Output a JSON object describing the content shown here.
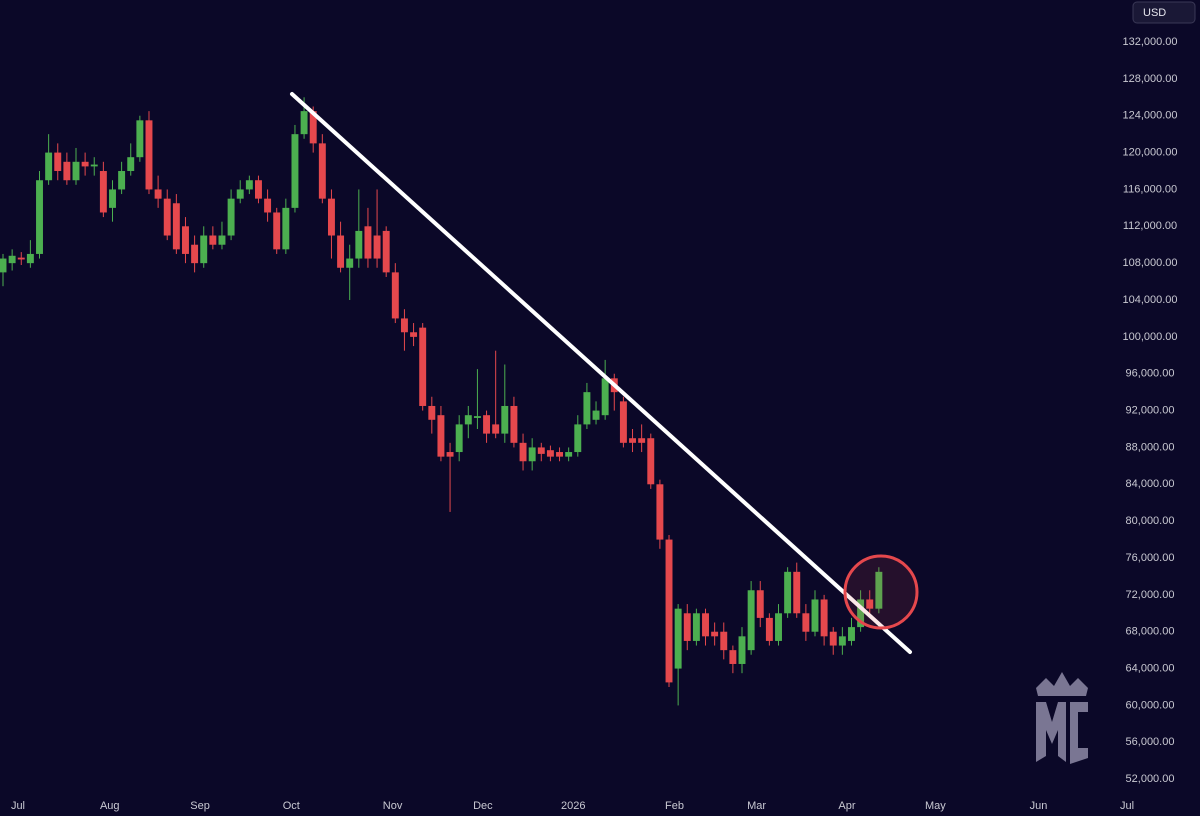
{
  "chart_data": {
    "type": "candlestick",
    "currency": "USD",
    "up_color": "#4caf50",
    "down_color": "#e5484d",
    "categories": [
      null,
      null,
      null,
      null,
      null,
      null,
      null,
      null,
      null,
      null,
      null,
      null,
      null,
      null,
      null,
      null,
      null,
      null,
      null,
      null,
      null,
      null,
      null,
      null,
      null,
      null,
      null,
      null,
      null,
      null,
      null,
      null,
      null,
      null,
      null,
      null,
      null,
      null,
      null,
      null,
      null,
      null,
      null,
      null,
      null,
      null,
      null,
      null,
      null,
      null,
      null,
      null,
      null,
      null,
      null,
      null,
      null,
      null,
      null,
      null,
      null,
      null,
      null,
      null,
      null,
      null,
      null,
      null,
      null,
      null,
      null,
      null,
      null,
      null,
      null,
      null,
      null,
      null,
      null,
      null,
      null,
      null,
      null,
      null,
      null,
      null,
      null,
      null,
      null,
      null,
      null,
      null,
      null,
      null,
      null,
      null,
      null
    ],
    "open": [
      107000,
      108000,
      108600,
      108000,
      109000,
      117000,
      120000,
      119000,
      117000,
      119000,
      118500,
      118000,
      114000,
      116000,
      118000,
      119500,
      123500,
      116000,
      115000,
      114500,
      112000,
      110000,
      108000,
      111000,
      110000,
      111000,
      115000,
      116000,
      117000,
      115000,
      113500,
      109500,
      114000,
      122000,
      124500,
      121000,
      115000,
      111000,
      107500,
      108500,
      112000,
      111000,
      111500,
      107000,
      102000,
      100500,
      101000,
      92500,
      91500,
      87500,
      87500,
      90500,
      91200,
      91500,
      90500,
      89500,
      92500,
      88500,
      86500,
      88000,
      87700,
      87500,
      87000,
      87500,
      90500,
      91000,
      91500,
      95500,
      93000,
      89000,
      89000,
      89000,
      84000,
      78000,
      64000,
      70000,
      67000,
      70000,
      68000,
      68000,
      66000,
      64500,
      66000,
      72500,
      69500,
      67000,
      70000,
      74500,
      70000,
      68000,
      71500,
      68000,
      66500,
      67000,
      68500,
      71500,
      70500
    ],
    "high": [
      109000,
      109500,
      109200,
      110500,
      118000,
      122000,
      121000,
      120000,
      120500,
      120000,
      119500,
      119000,
      117000,
      119000,
      121000,
      124000,
      124500,
      117500,
      116000,
      115500,
      113000,
      111000,
      112000,
      112000,
      112500,
      116000,
      117000,
      117500,
      117500,
      116000,
      114000,
      115000,
      123000,
      126000,
      125000,
      122000,
      116000,
      112500,
      110000,
      116000,
      114000,
      116000,
      112000,
      108000,
      103000,
      101500,
      101500,
      93500,
      92500,
      88500,
      91500,
      92500,
      96500,
      92000,
      98500,
      97000,
      93500,
      89500,
      89000,
      88500,
      88200,
      88000,
      88000,
      91500,
      95000,
      93000,
      97500,
      96000,
      93500,
      90000,
      90500,
      89500,
      84500,
      78500,
      71000,
      71000,
      70500,
      70500,
      69000,
      69000,
      66500,
      68500,
      73500,
      73500,
      70000,
      71000,
      75000,
      75500,
      71000,
      72500,
      72000,
      68500,
      68500,
      69500,
      72500,
      72500,
      75000
    ],
    "low": [
      105500,
      107200,
      107800,
      107500,
      108500,
      116500,
      117000,
      116500,
      116500,
      117500,
      117500,
      113000,
      112500,
      115500,
      117500,
      119000,
      115500,
      114000,
      110500,
      109000,
      108000,
      107000,
      107500,
      109500,
      109500,
      110500,
      114500,
      115500,
      114500,
      112500,
      109000,
      109000,
      113500,
      121500,
      120000,
      114500,
      108500,
      107000,
      104000,
      107500,
      107500,
      107500,
      106500,
      101500,
      98500,
      99000,
      92000,
      89500,
      86500,
      81000,
      86500,
      89000,
      90000,
      88500,
      89000,
      88500,
      88000,
      85500,
      85500,
      86500,
      86500,
      86500,
      86500,
      87000,
      90000,
      90500,
      91000,
      92000,
      88000,
      87500,
      87500,
      83500,
      77000,
      62000,
      60000,
      66000,
      66500,
      66500,
      66500,
      65000,
      63500,
      63500,
      65500,
      68500,
      66500,
      66500,
      69500,
      69500,
      67000,
      67500,
      66500,
      65500,
      65500,
      66500,
      68000,
      70000,
      70000
    ],
    "close": [
      108500,
      108800,
      108400,
      109000,
      117000,
      120000,
      118000,
      117000,
      119000,
      118500,
      118700,
      113500,
      116000,
      118000,
      119500,
      123500,
      116000,
      115000,
      111000,
      109500,
      109000,
      108000,
      111000,
      110000,
      111000,
      115000,
      116000,
      117000,
      115000,
      113500,
      109500,
      114000,
      122000,
      124500,
      121000,
      115000,
      111000,
      107500,
      108500,
      111500,
      108500,
      108500,
      107000,
      102000,
      100500,
      100000,
      92500,
      91000,
      87000,
      87000,
      90500,
      91500,
      91400,
      89500,
      89500,
      92500,
      88500,
      86500,
      88000,
      87300,
      87000,
      87000,
      87500,
      90500,
      94000,
      92000,
      95500,
      94000,
      88500,
      88500,
      88500,
      84000,
      78000,
      62500,
      70500,
      67000,
      70000,
      67500,
      67500,
      66000,
      64500,
      67500,
      72500,
      69500,
      67000,
      70000,
      74500,
      70000,
      68000,
      71500,
      67500,
      66500,
      67500,
      68500,
      71500,
      70500,
      74500
    ],
    "xlim": [
      -0.33,
      131.2
    ],
    "xticks": [
      {
        "value": 1.64,
        "label": "Jul"
      },
      {
        "value": 11.7,
        "label": "Aug"
      },
      {
        "value": 21.6,
        "label": "Sep"
      },
      {
        "value": 31.6,
        "label": "Oct"
      },
      {
        "value": 42.7,
        "label": "Nov"
      },
      {
        "value": 52.6,
        "label": "Dec"
      },
      {
        "value": 62.5,
        "label": "2026"
      },
      {
        "value": 73.6,
        "label": "Feb"
      },
      {
        "value": 82.6,
        "label": "Mar"
      },
      {
        "value": 92.5,
        "label": "Apr"
      },
      {
        "value": 102.2,
        "label": "May"
      },
      {
        "value": 113.5,
        "label": "Jun"
      },
      {
        "value": 123.2,
        "label": "Jul"
      }
    ],
    "ylim": [
      48000,
      136560
    ],
    "yticks": [
      {
        "value": 52000,
        "label": "52,000.00"
      },
      {
        "value": 56000,
        "label": "56,000.00"
      },
      {
        "value": 60000,
        "label": "60,000.00"
      },
      {
        "value": 64000,
        "label": "64,000.00"
      },
      {
        "value": 68000,
        "label": "68,000.00"
      },
      {
        "value": 72000,
        "label": "72,000.00"
      },
      {
        "value": 76000,
        "label": "76,000.00"
      },
      {
        "value": 80000,
        "label": "80,000.00"
      },
      {
        "value": 84000,
        "label": "84,000.00"
      },
      {
        "value": 88000,
        "label": "88,000.00"
      },
      {
        "value": 92000,
        "label": "92,000.00"
      },
      {
        "value": 96000,
        "label": "96,000.00"
      },
      {
        "value": 100000,
        "label": "100,000.00"
      },
      {
        "value": 104000,
        "label": "104,000.00"
      },
      {
        "value": 108000,
        "label": "108,000.00"
      },
      {
        "value": 112000,
        "label": "112,000.00"
      },
      {
        "value": 116000,
        "label": "116,000.00"
      },
      {
        "value": 120000,
        "label": "120,000.00"
      },
      {
        "value": 124000,
        "label": "124,000.00"
      },
      {
        "value": 128000,
        "label": "128,000.00"
      },
      {
        "value": 132000,
        "label": "132,000.00"
      }
    ],
    "grid": false
  }
}
